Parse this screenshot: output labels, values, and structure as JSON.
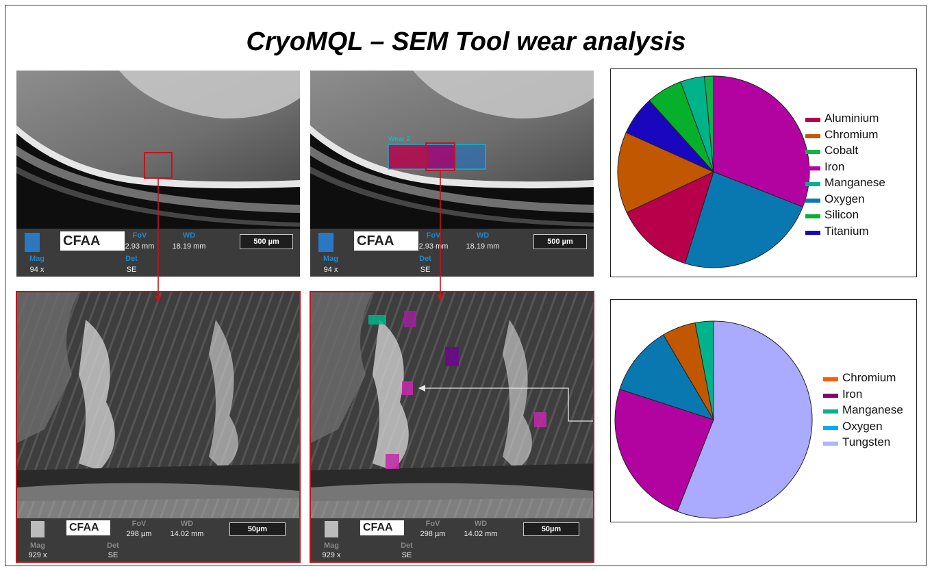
{
  "title": "CryoMQL – SEM Tool wear analysis",
  "sem_top": {
    "fov_label": "FoV",
    "fov_value": "2.93 mm",
    "wd_label": "WD",
    "wd_value": "18.19 mm",
    "mag_label": "Mag",
    "mag_value": "94 x",
    "det_label": "Det",
    "det_value": "SE",
    "scale": "500 µm",
    "logo_text": "CFAA",
    "annotation": "Wear 2"
  },
  "sem_bottom": {
    "fov_label": "FoV",
    "fov_value": "298 µm",
    "wd_label": "WD",
    "wd_value": "14.02 mm",
    "mag_label": "Mag",
    "mag_value": "929 x",
    "det_label": "Det",
    "det_value": "SE",
    "scale": "50µm",
    "logo_text": "CFAA"
  },
  "colors": {
    "arrow": "#c0161c",
    "highlight_box": "#c0161c"
  },
  "chart_data": [
    {
      "type": "pie",
      "title": "",
      "start_angle_deg": 0,
      "direction": "clockwise",
      "slices": [
        {
          "name": "Iron",
          "value": 30.5,
          "color": "#b2029f"
        },
        {
          "name": "Oxygen",
          "value": 23.5,
          "color": "#0a78b0"
        },
        {
          "name": "Aluminium",
          "value": 13.0,
          "color": "#b8004a"
        },
        {
          "name": "Chromium",
          "value": 13.5,
          "color": "#c15700"
        },
        {
          "name": "Titanium",
          "value": 6.5,
          "color": "#1b06c0"
        },
        {
          "name": "Silicon",
          "value": 6.0,
          "color": "#07b02a"
        },
        {
          "name": "Manganese",
          "value": 4.0,
          "color": "#00b38a"
        },
        {
          "name": "Cobalt",
          "value": 1.5,
          "color": "#13b34b"
        }
      ],
      "legend": [
        {
          "name": "Aluminium",
          "color": "#b8004a"
        },
        {
          "name": "Chromium",
          "color": "#c15700"
        },
        {
          "name": "Cobalt",
          "color": "#13b34b"
        },
        {
          "name": "Iron",
          "color": "#b2029f"
        },
        {
          "name": "Manganese",
          "color": "#00b38a"
        },
        {
          "name": "Oxygen",
          "color": "#0a78b0"
        },
        {
          "name": "Silicon",
          "color": "#07b02a"
        },
        {
          "name": "Titanium",
          "color": "#1b06c0"
        }
      ],
      "legend_position": "right"
    },
    {
      "type": "pie",
      "title": "",
      "start_angle_deg": 0,
      "direction": "clockwise",
      "slices": [
        {
          "name": "Tungsten",
          "value": 56.0,
          "color": "#aaaaff"
        },
        {
          "name": "Iron",
          "value": 24.0,
          "color": "#b2029f"
        },
        {
          "name": "Oxygen",
          "value": 11.5,
          "color": "#0a78b0"
        },
        {
          "name": "Chromium",
          "value": 5.5,
          "color": "#c15700"
        },
        {
          "name": "Manganese",
          "value": 3.0,
          "color": "#00b38a"
        }
      ],
      "legend": [
        {
          "name": "Chromium",
          "color": "#ff5a0a"
        },
        {
          "name": "Iron",
          "color": "#8a0070"
        },
        {
          "name": "Manganese",
          "color": "#00b38a"
        },
        {
          "name": "Oxygen",
          "color": "#00aaff"
        },
        {
          "name": "Tungsten",
          "color": "#b4b4f8"
        }
      ],
      "legend_position": "right"
    }
  ]
}
